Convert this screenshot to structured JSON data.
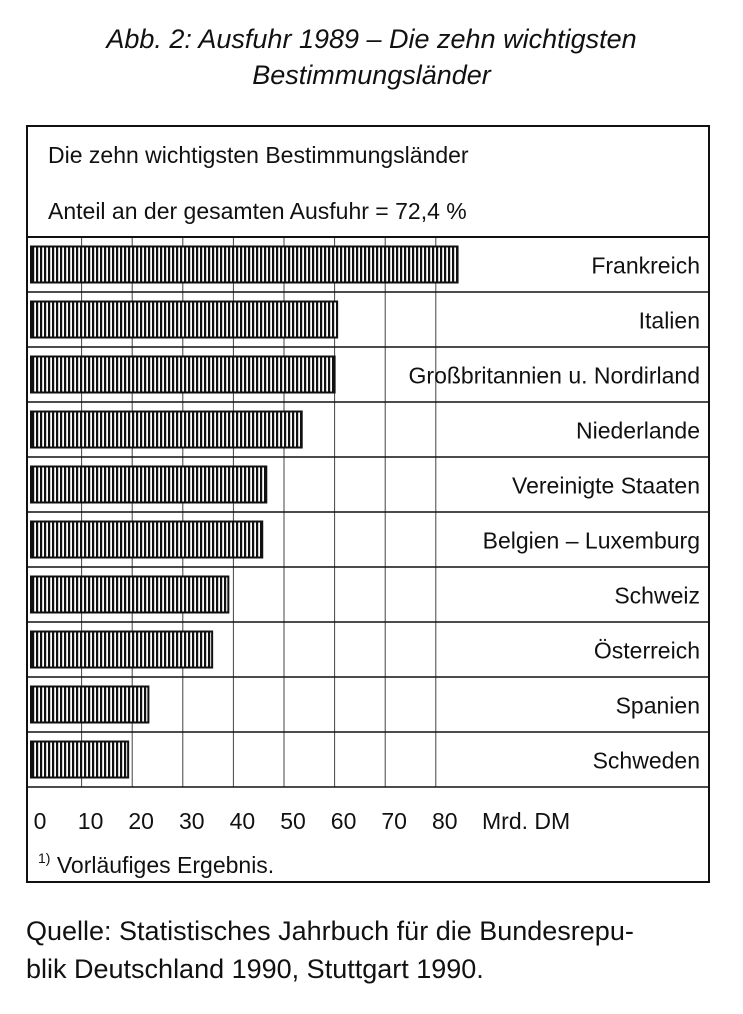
{
  "figure": {
    "title_line1": "Abb. 2: Ausfuhr 1989 – Die zehn wichtigsten",
    "title_line2": "Bestimmungsländer"
  },
  "chart_data": {
    "type": "bar",
    "orientation": "horizontal",
    "title": "Die zehn wichtigsten Bestimmungsländer",
    "subtitle": "Anteil an der gesamten Ausfuhr = 72,4 %",
    "categories": [
      "Frankreich",
      "Italien",
      "Großbritannien u. Nordirland",
      "Niederlande",
      "Vereinigte Staaten",
      "Belgien – Luxemburg",
      "Schweiz",
      "Österreich",
      "Spanien",
      "Schweden"
    ],
    "values": [
      84.3,
      60.5,
      60.0,
      53.5,
      46.5,
      45.7,
      39.0,
      35.8,
      23.2,
      19.2
    ],
    "xunit": "Mrd. DM",
    "xlim": [
      0,
      85
    ],
    "xticks": [
      "0",
      "10",
      "20",
      "30",
      "40",
      "50",
      "60",
      "70",
      "80"
    ],
    "grid": true,
    "bar_color": "#111111"
  },
  "footnote": {
    "marker": "1)",
    "text": "Vorläufiges Ergebnis."
  },
  "source": {
    "line1": "Quelle: Statistisches Jahrbuch für die Bundesrepu-",
    "line2": "blik Deutschland 1990, Stuttgart 1990."
  }
}
